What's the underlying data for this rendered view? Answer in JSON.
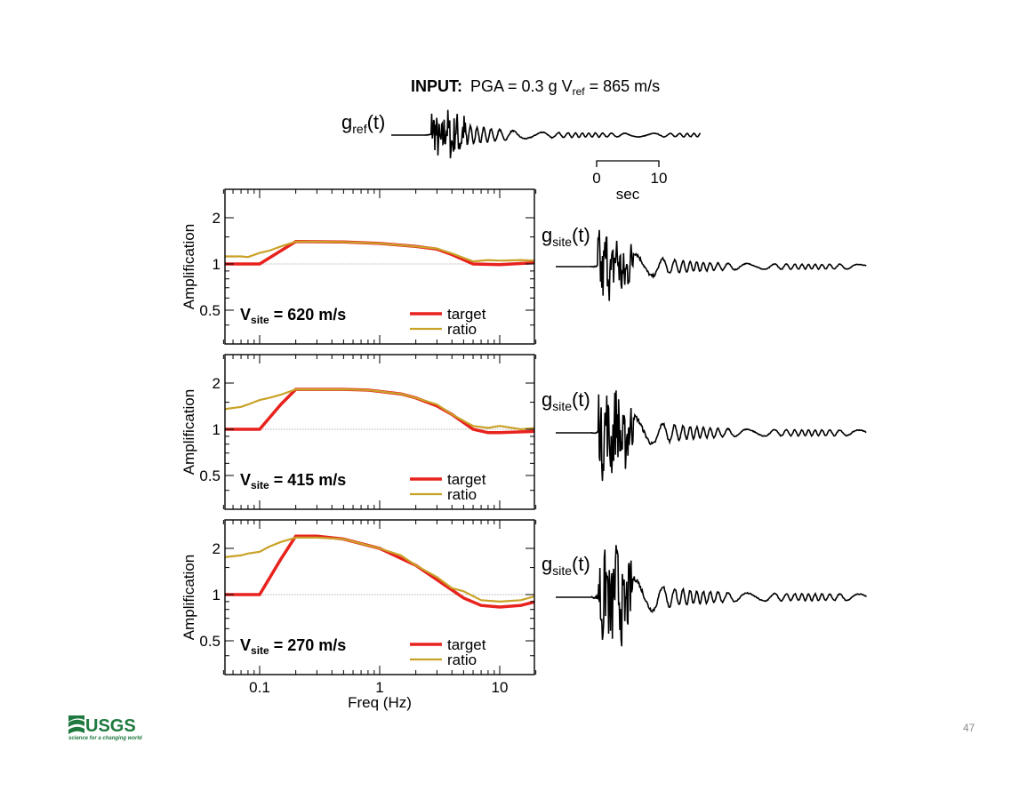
{
  "slide": {
    "title_bold": "INPUT:",
    "title_rest": "PGA = 0.3 g V",
    "title_sub": "ref",
    "title_end": " = 865 m/s",
    "ref_label_main": "g",
    "ref_label_sub": "ref",
    "ref_label_end": "(t)",
    "site_label_main": "g",
    "site_label_sub": "site",
    "site_label_end": "(t)",
    "scale_bar": {
      "start": "0",
      "end": "10",
      "unit": "sec"
    },
    "page_number": "47",
    "logo": {
      "text": "USGS",
      "tagline": "science for a changing world",
      "color": "#1f7a3f"
    }
  },
  "colors": {
    "target": "#e8231e",
    "ratio": "#c9a227",
    "wave": "#000000",
    "axis": "#000000"
  },
  "chart_data": [
    {
      "type": "line",
      "xlabel": "Freq (Hz)",
      "ylabel": "Amplification",
      "xscale": "log",
      "yscale": "log",
      "xlim": [
        0.05,
        20
      ],
      "ylim": [
        0.3,
        2.5
      ],
      "xticks": [
        "0.1",
        "1",
        "10"
      ],
      "yticks": [
        "0.5",
        "1",
        "2"
      ],
      "reference_line": 1,
      "annotation": {
        "main": "V",
        "sub": "site",
        "rest": " = 620 m/s"
      },
      "legend": [
        "target",
        "ratio"
      ],
      "legend_position": "bottom-right",
      "series": [
        {
          "name": "target",
          "x": [
            0.05,
            0.1,
            0.2,
            0.5,
            1,
            2,
            3,
            4,
            6,
            10,
            20
          ],
          "y": [
            1,
            1,
            1.4,
            1.39,
            1.36,
            1.3,
            1.25,
            1.15,
            1.0,
            0.99,
            1.02
          ]
        },
        {
          "name": "ratio",
          "x": [
            0.05,
            0.07,
            0.08,
            0.1,
            0.12,
            0.15,
            0.2,
            0.5,
            1,
            2,
            3,
            4,
            6,
            8,
            10,
            15,
            20
          ],
          "y": [
            1.12,
            1.12,
            1.11,
            1.18,
            1.22,
            1.3,
            1.4,
            1.39,
            1.36,
            1.3,
            1.26,
            1.17,
            1.04,
            1.06,
            1.05,
            1.06,
            1.05
          ]
        }
      ]
    },
    {
      "type": "line",
      "xlabel": "Freq (Hz)",
      "ylabel": "Amplification",
      "xscale": "log",
      "yscale": "log",
      "xlim": [
        0.05,
        20
      ],
      "ylim": [
        0.3,
        2.5
      ],
      "xticks": [
        "0.1",
        "1",
        "10"
      ],
      "yticks": [
        "0.5",
        "1",
        "2"
      ],
      "reference_line": 1,
      "annotation": {
        "main": "V",
        "sub": "site",
        "rest": " = 415 m/s"
      },
      "legend": [
        "target",
        "ratio"
      ],
      "legend_position": "bottom-right",
      "series": [
        {
          "name": "target",
          "x": [
            0.05,
            0.1,
            0.15,
            0.2,
            0.5,
            0.8,
            1.5,
            2,
            3,
            4,
            6,
            8,
            10,
            20
          ],
          "y": [
            1,
            1,
            1.45,
            1.82,
            1.82,
            1.8,
            1.7,
            1.6,
            1.42,
            1.25,
            1.0,
            0.95,
            0.95,
            0.97
          ]
        },
        {
          "name": "ratio",
          "x": [
            0.05,
            0.07,
            0.08,
            0.1,
            0.12,
            0.15,
            0.2,
            0.5,
            0.8,
            1.5,
            2,
            3,
            4,
            6,
            8,
            10,
            15,
            20
          ],
          "y": [
            1.35,
            1.4,
            1.45,
            1.55,
            1.6,
            1.68,
            1.82,
            1.82,
            1.8,
            1.7,
            1.6,
            1.45,
            1.25,
            1.05,
            1.02,
            1.05,
            1.0,
            1.02
          ]
        }
      ]
    },
    {
      "type": "line",
      "xlabel": "Freq (Hz)",
      "ylabel": "Amplification",
      "xscale": "log",
      "yscale": "log",
      "xlim": [
        0.05,
        20
      ],
      "ylim": [
        0.3,
        2.5
      ],
      "xticks": [
        "0.1",
        "1",
        "10"
      ],
      "yticks": [
        "0.5",
        "1",
        "2"
      ],
      "reference_line": 1,
      "annotation": {
        "main": "V",
        "sub": "site",
        "rest": " = 270 m/s"
      },
      "legend": [
        "target",
        "ratio"
      ],
      "legend_position": "bottom-right",
      "series": [
        {
          "name": "target",
          "x": [
            0.05,
            0.1,
            0.15,
            0.2,
            0.3,
            0.5,
            1,
            2,
            3,
            5,
            7,
            10,
            15,
            20
          ],
          "y": [
            1,
            1,
            1.7,
            2.4,
            2.4,
            2.3,
            2.0,
            1.55,
            1.25,
            0.95,
            0.85,
            0.83,
            0.85,
            0.9
          ]
        },
        {
          "name": "ratio",
          "x": [
            0.05,
            0.07,
            0.08,
            0.1,
            0.12,
            0.15,
            0.2,
            0.3,
            0.5,
            1,
            1.5,
            2,
            3,
            4,
            5,
            7,
            10,
            15,
            20
          ],
          "y": [
            1.75,
            1.8,
            1.85,
            1.9,
            2.05,
            2.2,
            2.35,
            2.35,
            2.3,
            2.0,
            1.8,
            1.55,
            1.3,
            1.1,
            1.05,
            0.92,
            0.9,
            0.92,
            0.98
          ]
        }
      ]
    }
  ]
}
